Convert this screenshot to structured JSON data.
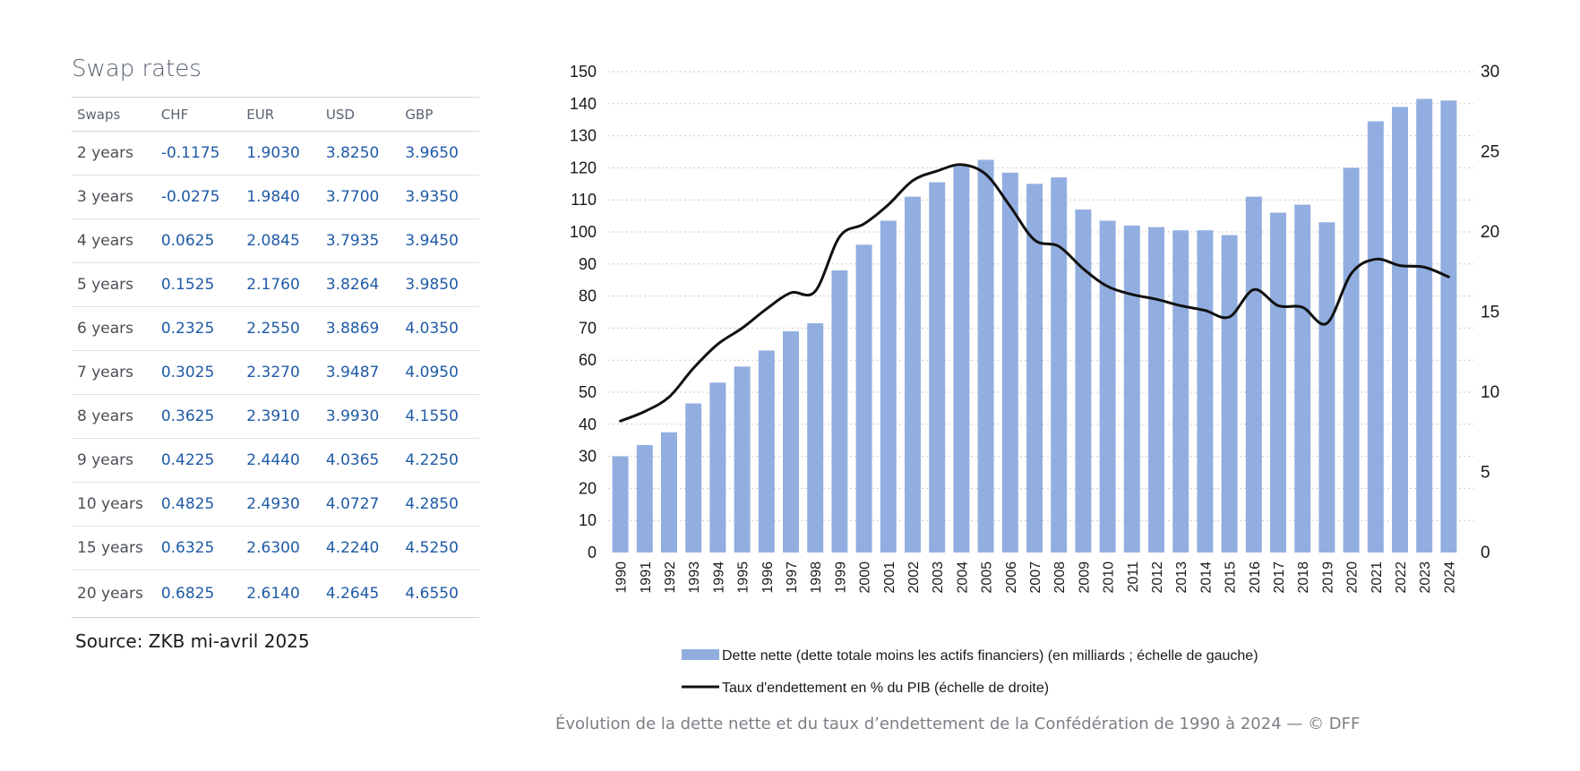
{
  "swap_rates": {
    "title": "Swap rates",
    "columns": [
      "Swaps",
      "CHF",
      "EUR",
      "USD",
      "GBP"
    ],
    "rows": [
      [
        "2 years",
        "-0.1175",
        "1.9030",
        "3.8250",
        "3.9650"
      ],
      [
        "3 years",
        "-0.0275",
        "1.9840",
        "3.7700",
        "3.9350"
      ],
      [
        "4 years",
        "0.0625",
        "2.0845",
        "3.7935",
        "3.9450"
      ],
      [
        "5 years",
        "0.1525",
        "2.1760",
        "3.8264",
        "3.9850"
      ],
      [
        "6 years",
        "0.2325",
        "2.2550",
        "3.8869",
        "4.0350"
      ],
      [
        "7 years",
        "0.3025",
        "2.3270",
        "3.9487",
        "4.0950"
      ],
      [
        "8 years",
        "0.3625",
        "2.3910",
        "3.9930",
        "4.1550"
      ],
      [
        "9 years",
        "0.4225",
        "2.4440",
        "4.0365",
        "4.2250"
      ],
      [
        "10 years",
        "0.4825",
        "2.4930",
        "4.0727",
        "4.2850"
      ],
      [
        "15 years",
        "0.6325",
        "2.6300",
        "4.2240",
        "4.5250"
      ],
      [
        "20 years",
        "0.6825",
        "2.6140",
        "4.2645",
        "4.6550"
      ]
    ],
    "source": "Source: ZKB mi-avril 2025",
    "colors": {
      "value": "#1f5aa6",
      "tenor": "#4a4f55",
      "header": "#5a6470"
    }
  },
  "chart_data": {
    "type": "bar",
    "caption": "Évolution de la dette nette et du taux d’endettement de la Confédération de 1990 à 2024 — © DFF",
    "categories": [
      "1990",
      "1991",
      "1992",
      "1993",
      "1994",
      "1995",
      "1996",
      "1997",
      "1998",
      "1999",
      "2000",
      "2001",
      "2002",
      "2003",
      "2004",
      "2005",
      "2006",
      "2007",
      "2008",
      "2009",
      "2010",
      "2011",
      "2012",
      "2013",
      "2014",
      "2015",
      "2016",
      "2017",
      "2018",
      "2019",
      "2020",
      "2021",
      "2022",
      "2023",
      "2024"
    ],
    "series": [
      {
        "name": "Dette nette (dette totale moins les actifs financiers) (en milliards ; échelle de gauche)",
        "type": "bar",
        "axis": "left",
        "color": "#92aee0",
        "values": [
          30,
          33.5,
          37.5,
          46.5,
          53,
          58,
          63,
          69,
          71.5,
          88,
          96,
          103.5,
          111,
          115.5,
          120.5,
          122.5,
          118.5,
          115,
          117,
          107,
          103.5,
          102,
          101.5,
          100.5,
          100.5,
          99,
          111,
          106,
          108.5,
          103,
          120,
          134.5,
          139,
          141.5,
          141
        ]
      },
      {
        "name": "Taux d'endettement en % du PIB  (échelle de droite)",
        "type": "line",
        "axis": "right",
        "color": "#111111",
        "values": [
          8.2,
          8.8,
          9.7,
          11.5,
          13,
          14,
          15.2,
          16.2,
          16.3,
          19.7,
          20.5,
          21.7,
          23.2,
          23.8,
          24.2,
          23.6,
          21.6,
          19.5,
          19.1,
          17.7,
          16.6,
          16.1,
          15.8,
          15.4,
          15.1,
          14.7,
          16.4,
          15.4,
          15.3,
          14.3,
          17.4,
          18.3,
          17.9,
          17.8,
          17.2
        ]
      }
    ],
    "y_left": {
      "ylim": [
        0,
        150
      ],
      "ticks": [
        0,
        10,
        20,
        30,
        40,
        50,
        60,
        70,
        80,
        90,
        100,
        110,
        120,
        130,
        140,
        150
      ]
    },
    "y_right": {
      "ylim": [
        0,
        30
      ],
      "ticks": [
        0,
        5,
        10,
        15,
        20,
        25,
        30
      ]
    },
    "grid": true,
    "legend_position": "bottom"
  }
}
